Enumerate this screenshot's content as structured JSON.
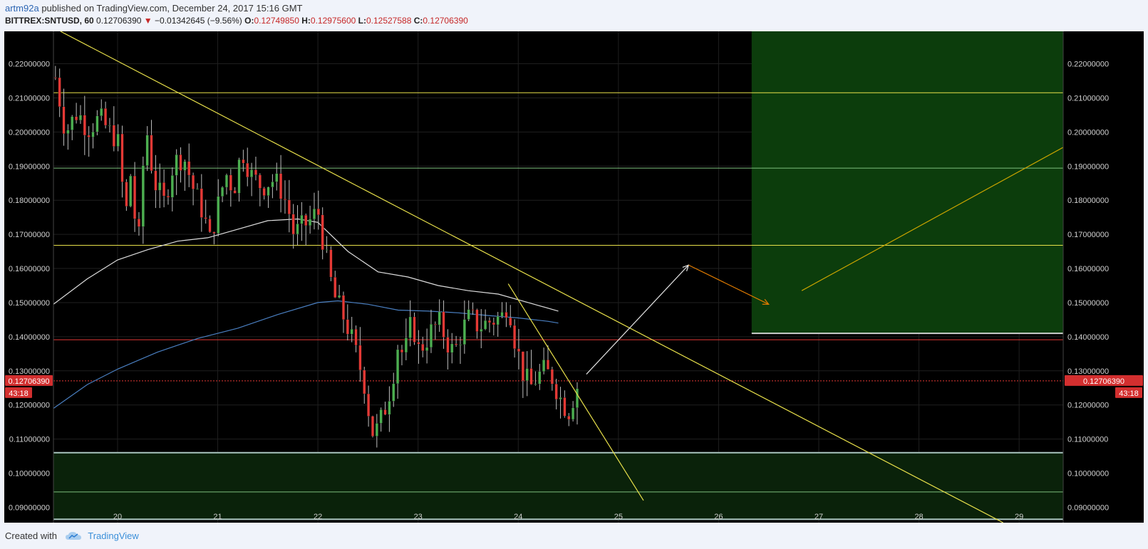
{
  "header": {
    "author": "artm92a",
    "published_text": "published on TradingView.com, December 24, 2017 15:16 GMT",
    "symbol": "BITTREX:SNTUSD, 60",
    "last": "0.12706390",
    "change_arrow": "▼",
    "change": "−0.01342645 (−9.56%)",
    "o_label": "O:",
    "o": "0.12749850",
    "h_label": "H:",
    "h": "0.12975600",
    "l_label": "L:",
    "l": "0.12527588",
    "c_label": "C:",
    "c": "0.12706390"
  },
  "footer": {
    "created_with": "Created with",
    "brand": "TradingView"
  },
  "colors": {
    "bg": "#000000",
    "grid": "#1f1f1f",
    "up": "#4caf50",
    "down": "#e53935",
    "yellow": "#e8e04a",
    "green_zone": "#0c3d0c",
    "support_zone": "#0a220a"
  },
  "chart_data": {
    "type": "candlestick",
    "symbol": "BITTREX:SNTUSD",
    "interval": "60",
    "x_ticks": [
      "20",
      "21",
      "22",
      "23",
      "24",
      "25",
      "26",
      "27",
      "28",
      "29"
    ],
    "y_ticks": [
      "0.09000000",
      "0.10000000",
      "0.11000000",
      "0.12000000",
      "0.13000000",
      "0.14000000",
      "0.15000000",
      "0.16000000",
      "0.17000000",
      "0.18000000",
      "0.19000000",
      "0.20000000",
      "0.21000000",
      "0.22000000"
    ],
    "ylim": [
      0.0855,
      0.2295
    ],
    "xlim": [
      19.36,
      29.44
    ],
    "last_price_label": "0.12706390",
    "countdown": "43:18",
    "last_price": 0.1270639,
    "anchors": [
      [
        19.38,
        0.216
      ],
      [
        19.48,
        0.2
      ],
      [
        19.6,
        0.206
      ],
      [
        19.7,
        0.201
      ],
      [
        19.82,
        0.204
      ],
      [
        19.92,
        0.2
      ],
      [
        20.0,
        0.198
      ],
      [
        20.08,
        0.175
      ],
      [
        20.14,
        0.19
      ],
      [
        20.2,
        0.162
      ],
      [
        20.28,
        0.203
      ],
      [
        20.36,
        0.186
      ],
      [
        20.46,
        0.179
      ],
      [
        20.56,
        0.191
      ],
      [
        20.66,
        0.193
      ],
      [
        20.76,
        0.183
      ],
      [
        20.86,
        0.176
      ],
      [
        20.92,
        0.168
      ],
      [
        21.0,
        0.178
      ],
      [
        21.08,
        0.188
      ],
      [
        21.16,
        0.183
      ],
      [
        21.24,
        0.195
      ],
      [
        21.34,
        0.187
      ],
      [
        21.44,
        0.184
      ],
      [
        21.54,
        0.186
      ],
      [
        21.62,
        0.184
      ],
      [
        21.7,
        0.178
      ],
      [
        21.76,
        0.17
      ],
      [
        21.84,
        0.172
      ],
      [
        21.92,
        0.174
      ],
      [
        22.0,
        0.177
      ],
      [
        22.08,
        0.163
      ],
      [
        22.16,
        0.152
      ],
      [
        22.24,
        0.147
      ],
      [
        22.32,
        0.141
      ],
      [
        22.4,
        0.133
      ],
      [
        22.46,
        0.127
      ],
      [
        22.54,
        0.112
      ],
      [
        22.6,
        0.113
      ],
      [
        22.68,
        0.12
      ],
      [
        22.74,
        0.127
      ],
      [
        22.8,
        0.138
      ],
      [
        22.86,
        0.134
      ],
      [
        22.94,
        0.145
      ],
      [
        23.0,
        0.136
      ],
      [
        23.06,
        0.138
      ],
      [
        23.14,
        0.142
      ],
      [
        23.22,
        0.144
      ],
      [
        23.28,
        0.139
      ],
      [
        23.36,
        0.135
      ],
      [
        23.44,
        0.142
      ],
      [
        23.52,
        0.146
      ],
      [
        23.6,
        0.143
      ],
      [
        23.68,
        0.144
      ],
      [
        23.76,
        0.145
      ],
      [
        23.84,
        0.146
      ],
      [
        23.9,
        0.151
      ],
      [
        23.96,
        0.14
      ],
      [
        24.04,
        0.13
      ],
      [
        24.12,
        0.125
      ],
      [
        24.18,
        0.128
      ],
      [
        24.26,
        0.13
      ],
      [
        24.34,
        0.128
      ],
      [
        24.42,
        0.122
      ],
      [
        24.5,
        0.118
      ],
      [
        24.58,
        0.125
      ],
      [
        24.62,
        0.1271
      ]
    ],
    "moving_averages": [
      {
        "color": "#dddddd",
        "points": [
          [
            19.36,
            0.1495
          ],
          [
            19.7,
            0.157
          ],
          [
            20.0,
            0.1625
          ],
          [
            20.3,
            0.1655
          ],
          [
            20.6,
            0.168
          ],
          [
            20.9,
            0.169
          ],
          [
            21.2,
            0.1715
          ],
          [
            21.5,
            0.174
          ],
          [
            21.8,
            0.1745
          ],
          [
            22.0,
            0.1735
          ],
          [
            22.3,
            0.165
          ],
          [
            22.6,
            0.159
          ],
          [
            22.9,
            0.1575
          ],
          [
            23.2,
            0.155
          ],
          [
            23.5,
            0.1535
          ],
          [
            23.8,
            0.1525
          ],
          [
            24.1,
            0.15
          ],
          [
            24.4,
            0.1475
          ]
        ]
      },
      {
        "color": "#4a7fc1",
        "points": [
          [
            19.36,
            0.119
          ],
          [
            19.7,
            0.126
          ],
          [
            20.0,
            0.1305
          ],
          [
            20.4,
            0.1355
          ],
          [
            20.8,
            0.1395
          ],
          [
            21.2,
            0.1425
          ],
          [
            21.6,
            0.1465
          ],
          [
            22.0,
            0.15
          ],
          [
            22.2,
            0.1505
          ],
          [
            22.5,
            0.1495
          ],
          [
            22.8,
            0.1478
          ],
          [
            23.1,
            0.1475
          ],
          [
            23.4,
            0.147
          ],
          [
            23.7,
            0.1462
          ],
          [
            24.0,
            0.1455
          ],
          [
            24.3,
            0.1445
          ],
          [
            24.4,
            0.144
          ]
        ]
      }
    ],
    "horizontal_lines": [
      {
        "y": 0.2115,
        "color": "#e8e04a"
      },
      {
        "y": 0.1894,
        "color": "#7ec07e"
      },
      {
        "y": 0.1668,
        "color": "#e8e04a"
      },
      {
        "y": 0.1391,
        "color": "#e53935"
      },
      {
        "y": 0.1270639,
        "color": "#e53935",
        "dashed": true
      },
      {
        "y": 0.0945,
        "color": "#7ec07e"
      }
    ],
    "zones": [
      {
        "x1": 26.33,
        "x2": 29.44,
        "y1": 0.141,
        "y2": 0.2295,
        "color": "#0c3d0c",
        "edge": "#cfcfcf"
      },
      {
        "x1": 19.36,
        "x2": 29.44,
        "y1": 0.0865,
        "y2": 0.106,
        "color": "#0a220a",
        "edge": "#a9c4bf"
      }
    ],
    "trendlines": [
      {
        "points": [
          [
            19.43,
            0.2295
          ],
          [
            28.84,
            0.0855
          ]
        ],
        "color": "#e8e04a"
      },
      {
        "points": [
          [
            23.9,
            0.1555
          ],
          [
            25.25,
            0.092
          ]
        ],
        "color": "#e8e04a"
      },
      {
        "points": [
          [
            26.83,
            0.1535
          ],
          [
            29.44,
            0.1955
          ]
        ],
        "color": "#c9a400"
      }
    ],
    "arrows": [
      {
        "from": [
          24.68,
          0.129
        ],
        "to": [
          25.7,
          0.161
        ],
        "color": "#e6e6e6"
      },
      {
        "from": [
          25.7,
          0.161
        ],
        "to": [
          26.5,
          0.1495
        ],
        "color": "#e07b00"
      }
    ]
  }
}
